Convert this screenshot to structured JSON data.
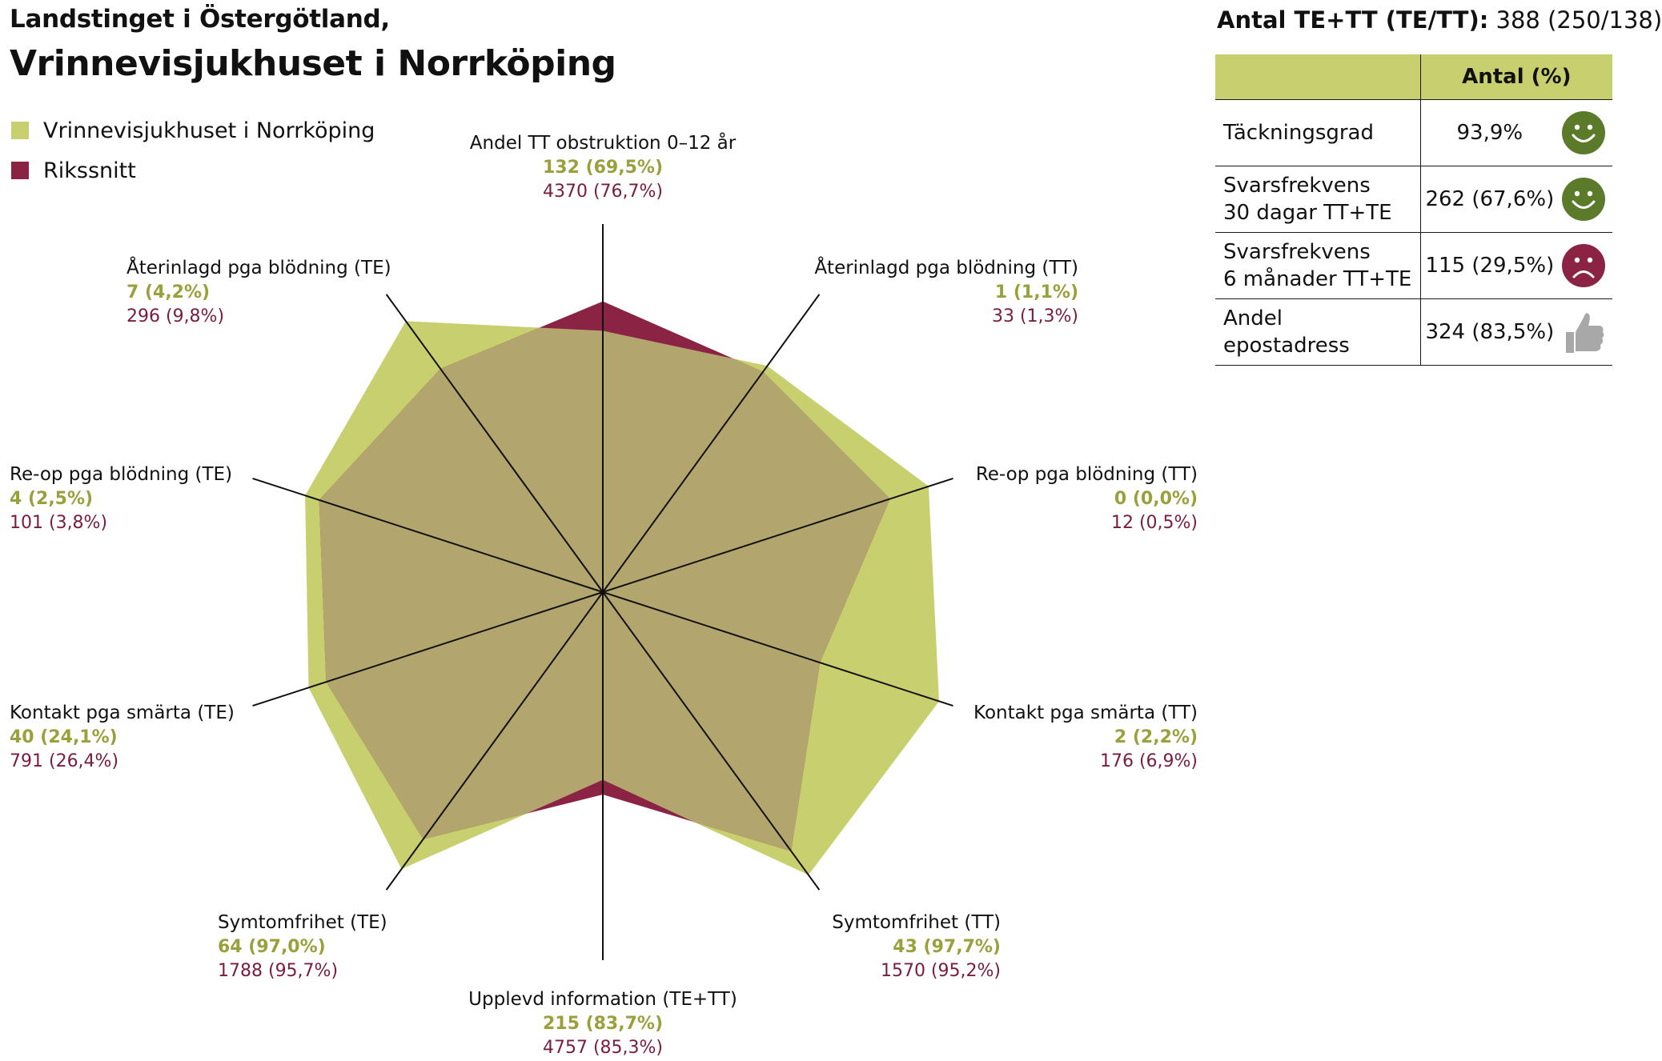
{
  "header": {
    "line1": "Landstinget i Östergötland,",
    "line2": "Vrinnevisjukhuset i Norrköping"
  },
  "legend": [
    {
      "label": "Vrinnevisjukhuset i Norrköping",
      "color": "#c8cf6e"
    },
    {
      "label": "Rikssnitt",
      "color": "#8b2344"
    }
  ],
  "summary": {
    "label": "Antal TE+TT (TE/TT):",
    "value": "388 (250/138)"
  },
  "kpi_table": {
    "header": "Antal (%)",
    "header_color": "#c8cf6e",
    "rows": [
      {
        "label_line1": "Täckningsgrad",
        "label_line2": "",
        "value": "93,9%",
        "icon": "happy-face-icon",
        "icon_color": "#5b7a2a"
      },
      {
        "label_line1": "Svarsfrekvens",
        "label_line2": "30 dagar TT+TE",
        "value": "262 (67,6%)",
        "icon": "happy-face-icon",
        "icon_color": "#5b7a2a"
      },
      {
        "label_line1": "Svarsfrekvens",
        "label_line2": "6 månader TT+TE",
        "value": "115 (29,5%)",
        "icon": "sad-face-icon",
        "icon_color": "#8b2344"
      },
      {
        "label_line1": "Andel epostadress",
        "label_line2": "",
        "value": "324 (83,5%)",
        "icon": "thumbs-up-icon",
        "icon_color": "#a8a8a8"
      }
    ]
  },
  "chart_data": {
    "type": "radar",
    "colors": {
      "hospital": "#c8cf6e",
      "national": "#8b2344",
      "hospital_value_text": "#9aa03c",
      "national_value_text": "#7a1d3c",
      "overlap": "#b3a56e"
    },
    "axes": [
      {
        "label": "Andel TT obstruktion 0–12 år",
        "hospital": "132 (69,5%)",
        "national": "4370 (76,7%)"
      },
      {
        "label": "Återinlagd pga blödning (TT)",
        "hospital": "1 (1,1%)",
        "national": "33 (1,3%)"
      },
      {
        "label": "Re-op pga blödning (TT)",
        "hospital": "0 (0,0%)",
        "national": "12 (0,5%)"
      },
      {
        "label": "Kontakt pga smärta (TT)",
        "hospital": "2 (2,2%)",
        "national": "176 (6,9%)"
      },
      {
        "label": "Symtomfrihet (TT)",
        "hospital": "43 (97,7%)",
        "national": "1570 (95,2%)"
      },
      {
        "label": "Upplevd information (TE+TT)",
        "hospital": "215 (83,7%)",
        "national": "4757 (85,3%)"
      },
      {
        "label": "Symtomfrihet (TE)",
        "hospital": "64 (97,0%)",
        "national": "1788 (95,7%)"
      },
      {
        "label": "Kontakt pga smärta (TE)",
        "hospital": "40 (24,1%)",
        "national": "791 (26,4%)"
      },
      {
        "label": "Re-op pga blödning (TE)",
        "hospital": "4 (2,5%)",
        "national": "101 (3,8%)"
      },
      {
        "label": "Återinlagd pga blödning (TE)",
        "hospital": "7 (4,2%)",
        "national": "296 (9,8%)"
      }
    ],
    "series": [
      {
        "name": "Vrinnevisjukhuset i Norrköping",
        "levels": [
          0.71,
          0.76,
          0.93,
          0.96,
          0.95,
          0.51,
          0.93,
          0.84,
          0.85,
          0.91
        ]
      },
      {
        "name": "Rikssnitt",
        "levels": [
          0.79,
          0.74,
          0.82,
          0.62,
          0.87,
          0.55,
          0.83,
          0.79,
          0.81,
          0.75
        ]
      }
    ],
    "legend_position": "top-left",
    "grid": false
  }
}
